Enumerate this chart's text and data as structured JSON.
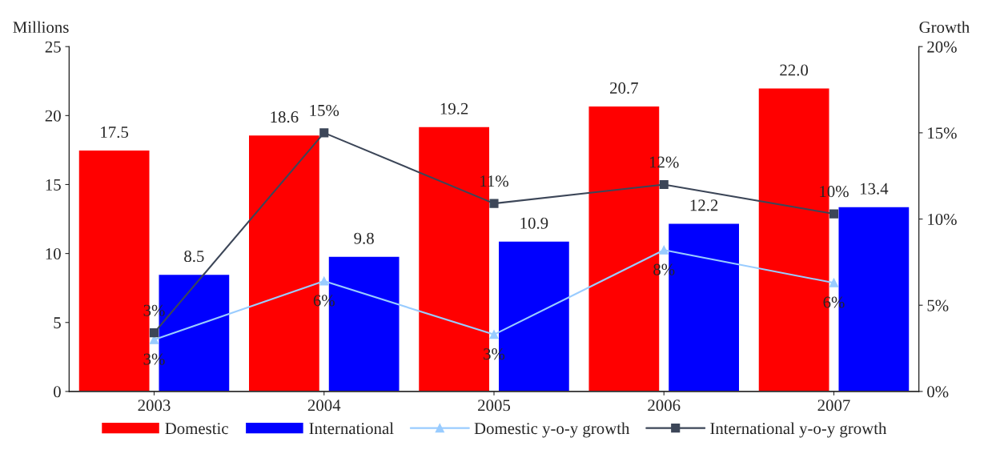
{
  "chart_data": {
    "type": "bar",
    "categories": [
      "2003",
      "2004",
      "2005",
      "2006",
      "2007"
    ],
    "ylabel": "Millions",
    "y2label": "Growth",
    "ylim": [
      0,
      25
    ],
    "yticks": [
      0,
      5,
      10,
      15,
      20,
      25
    ],
    "y2lim": [
      0,
      20
    ],
    "y2ticks": [
      {
        "value": 0,
        "label": "0%"
      },
      {
        "value": 5,
        "label": "5%"
      },
      {
        "value": 10,
        "label": "10%"
      },
      {
        "value": 15,
        "label": "15%"
      },
      {
        "value": 20,
        "label": "20%"
      }
    ],
    "grid": false,
    "legend": "bottom",
    "series": [
      {
        "name": "Domestic",
        "color": "#ff0000",
        "values": [
          17.5,
          18.6,
          19.2,
          20.7,
          22.0
        ],
        "value_labels": [
          "17.5",
          "18.6",
          "19.2",
          "20.7",
          "22.0"
        ]
      },
      {
        "name": "International",
        "color": "#0000ff",
        "values": [
          8.5,
          9.8,
          10.9,
          12.2,
          13.4
        ],
        "value_labels": [
          "8.5",
          "9.8",
          "10.9",
          "12.2",
          "13.4"
        ]
      },
      {
        "name": "Domestic y-o-y growth",
        "type": "line",
        "axis": "y2",
        "color": "#99ccff",
        "marker": "triangle",
        "values": [
          3.0,
          6.4,
          3.3,
          8.2,
          6.3
        ],
        "value_labels": [
          "3%",
          "6%",
          "3%",
          "8%",
          "6%"
        ]
      },
      {
        "name": "International y-o-y growth",
        "type": "line",
        "axis": "y2",
        "color": "#3c4658",
        "marker": "square",
        "values": [
          3.4,
          15.0,
          10.9,
          12.0,
          10.3
        ],
        "value_labels": [
          "3%",
          "15%",
          "11%",
          "12%",
          "10%"
        ]
      }
    ]
  }
}
